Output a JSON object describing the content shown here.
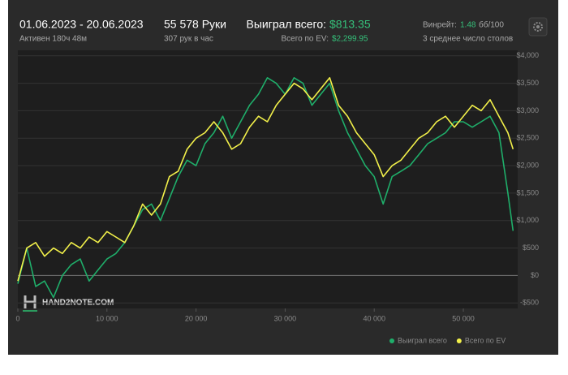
{
  "header": {
    "period": "01.06.2023 - 20.06.2023",
    "active": "Активен 180ч 48м",
    "hands": "55 578 Руки",
    "hands_rate": "307 рук в час",
    "won_label": "Выиграл всего:",
    "won_value": "$813.35",
    "ev_label": "Всего по EV:",
    "ev_value": "$2,299.95",
    "winrate_label": "Винрейт:",
    "winrate_value": "1.48",
    "winrate_unit": "бб/100",
    "tables": "3 среднее число столов"
  },
  "chart_data": {
    "type": "line",
    "watermark": "HAND2NOTE.COM",
    "x": [
      0,
      1000,
      2000,
      3000,
      4000,
      5000,
      6000,
      7000,
      8000,
      9000,
      10000,
      11000,
      12000,
      13000,
      14000,
      15000,
      16000,
      17000,
      18000,
      19000,
      20000,
      21000,
      22000,
      23000,
      24000,
      25000,
      26000,
      27000,
      28000,
      29000,
      30000,
      31000,
      32000,
      33000,
      34000,
      35000,
      36000,
      37000,
      38000,
      39000,
      40000,
      41000,
      42000,
      43000,
      44000,
      45000,
      46000,
      47000,
      48000,
      49000,
      50000,
      51000,
      52000,
      53000,
      54000,
      55000,
      55578
    ],
    "series": [
      {
        "name": "Выиграл всего",
        "color": "#1fae6a",
        "values": [
          -150,
          500,
          -200,
          -100,
          -400,
          0,
          200,
          300,
          -100,
          100,
          300,
          400,
          600,
          900,
          1200,
          1300,
          1000,
          1400,
          1800,
          2100,
          2000,
          2400,
          2600,
          2900,
          2500,
          2800,
          3100,
          3300,
          3600,
          3500,
          3300,
          3600,
          3500,
          3100,
          3300,
          3500,
          3000,
          2600,
          2300,
          2000,
          1800,
          1300,
          1800,
          1900,
          2000,
          2200,
          2400,
          2500,
          2600,
          2800,
          2800,
          2700,
          2800,
          2900,
          2600,
          1500,
          813.35
        ]
      },
      {
        "name": "Всего по EV",
        "color": "#f2f04a",
        "values": [
          -100,
          500,
          600,
          350,
          500,
          400,
          600,
          500,
          700,
          600,
          800,
          700,
          600,
          900,
          1300,
          1100,
          1300,
          1800,
          1900,
          2300,
          2500,
          2600,
          2800,
          2600,
          2300,
          2400,
          2700,
          2900,
          2800,
          3100,
          3300,
          3500,
          3400,
          3200,
          3400,
          3600,
          3100,
          2900,
          2600,
          2400,
          2200,
          1800,
          2000,
          2100,
          2300,
          2500,
          2600,
          2800,
          2900,
          2700,
          2900,
          3100,
          3000,
          3200,
          2900,
          2600,
          2299.95
        ]
      }
    ],
    "xlim": [
      0,
      56100
    ],
    "xticks": [
      {
        "value": 0,
        "label": "0"
      },
      {
        "value": 10000,
        "label": "10 000"
      },
      {
        "value": 20000,
        "label": "20 000"
      },
      {
        "value": 30000,
        "label": "30 000"
      },
      {
        "value": 40000,
        "label": "40 000"
      },
      {
        "value": 50000,
        "label": "50 000"
      }
    ],
    "ylim": [
      -600,
      4100
    ],
    "yticks": [
      {
        "value": -500,
        "label": "-$500"
      },
      {
        "value": 0,
        "label": "$0"
      },
      {
        "value": 500,
        "label": "$500"
      },
      {
        "value": 1000,
        "label": "$1,000"
      },
      {
        "value": 1500,
        "label": "$1,500"
      },
      {
        "value": 2000,
        "label": "$2,000"
      },
      {
        "value": 2500,
        "label": "$2,500"
      },
      {
        "value": 3000,
        "label": "$3,000"
      },
      {
        "value": 3500,
        "label": "$3,500"
      },
      {
        "value": 4000,
        "label": "$4,000"
      }
    ],
    "grid": true,
    "legend": "bottom-right"
  }
}
